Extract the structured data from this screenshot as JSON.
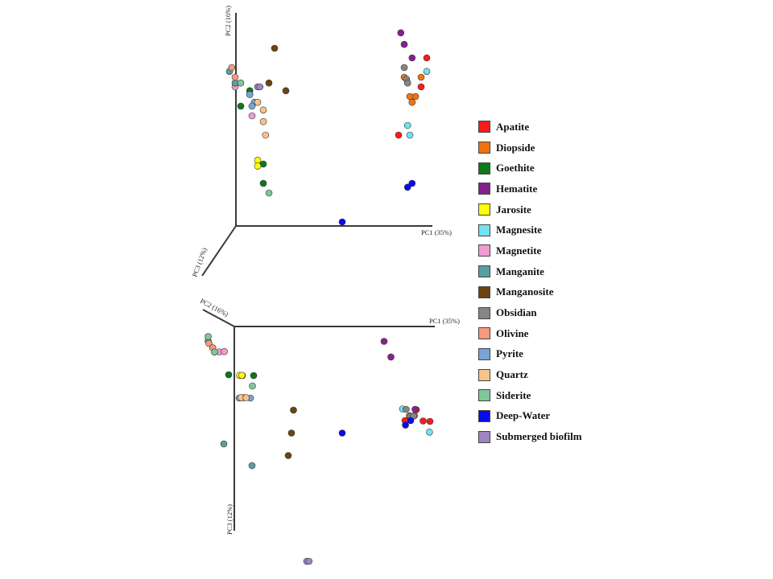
{
  "chart_data": [
    {
      "type": "scatter",
      "title": "",
      "axes": {
        "x": "PC1 (35%)",
        "y": "PC2 (16%)",
        "z": "PC3 (12%)"
      },
      "series": [
        {
          "name": "Apatite",
          "points": [
            [
              0.85,
              0.85,
              0.3
            ],
            [
              0.8,
              0.7,
              0.3
            ],
            [
              0.6,
              0.45,
              0.3
            ]
          ]
        },
        {
          "name": "Diopside",
          "points": [
            [
              0.8,
              0.75,
              0.3
            ],
            [
              0.75,
              0.65,
              0.3
            ],
            [
              0.65,
              0.75,
              0.3
            ],
            [
              0.7,
              0.65,
              0.3
            ],
            [
              0.72,
              0.62,
              0.3
            ]
          ]
        },
        {
          "name": "Goethite",
          "points": [
            [
              -0.72,
              0.68,
              0.3
            ],
            [
              -0.6,
              0.3,
              0.3
            ],
            [
              -0.6,
              0.2,
              0.3
            ],
            [
              -0.8,
              0.6,
              0.3
            ]
          ]
        },
        {
          "name": "Hematite",
          "points": [
            [
              0.62,
              0.98,
              0.3
            ],
            [
              0.65,
              0.92,
              0.3
            ],
            [
              0.72,
              0.85,
              0.3
            ]
          ]
        },
        {
          "name": "Jarosite",
          "points": [
            [
              -0.65,
              0.32,
              0.3
            ],
            [
              -0.65,
              0.29,
              0.3
            ]
          ]
        },
        {
          "name": "Magnesite",
          "points": [
            [
              0.85,
              0.78,
              0.3
            ],
            [
              0.68,
              0.5,
              0.3
            ],
            [
              0.7,
              0.45,
              0.3
            ]
          ]
        },
        {
          "name": "Magnetite",
          "points": [
            [
              -0.85,
              0.7,
              0.3
            ],
            [
              -0.7,
              0.55,
              0.3
            ]
          ]
        },
        {
          "name": "Manganite",
          "points": [
            [
              -0.9,
              0.78,
              0.3
            ],
            [
              -0.85,
              0.72,
              0.3
            ]
          ]
        },
        {
          "name": "Manganosite",
          "points": [
            [
              -0.5,
              0.9,
              0.3
            ],
            [
              -0.55,
              0.72,
              0.3
            ],
            [
              -0.4,
              0.68,
              0.3
            ]
          ]
        },
        {
          "name": "Obsidian",
          "points": [
            [
              0.65,
              0.8,
              0.3
            ],
            [
              0.67,
              0.74,
              0.3
            ],
            [
              0.68,
              0.72,
              0.3
            ]
          ]
        },
        {
          "name": "Olivine",
          "points": [
            [
              -0.88,
              0.8,
              0.3
            ],
            [
              -0.85,
              0.75,
              0.3
            ]
          ]
        },
        {
          "name": "Pyrite",
          "points": [
            [
              -0.72,
              0.66,
              0.3
            ],
            [
              -0.68,
              0.62,
              0.3
            ],
            [
              -0.7,
              0.6,
              0.3
            ]
          ]
        },
        {
          "name": "Quartz",
          "points": [
            [
              -0.65,
              0.62,
              0.3
            ],
            [
              -0.6,
              0.58,
              0.3
            ],
            [
              -0.6,
              0.52,
              0.3
            ],
            [
              -0.58,
              0.45,
              0.3
            ]
          ]
        },
        {
          "name": "Siderite",
          "points": [
            [
              -0.8,
              0.72,
              0.3
            ],
            [
              -0.55,
              0.15,
              0.3
            ]
          ]
        },
        {
          "name": "Deep-Water",
          "points": [
            [
              0.1,
              0.0,
              0.3
            ],
            [
              0.72,
              0.2,
              0.3
            ],
            [
              0.68,
              0.18,
              0.3
            ]
          ]
        },
        {
          "name": "Submerged biofilm",
          "points": [
            [
              -0.65,
              0.7,
              0.3
            ],
            [
              -0.63,
              0.7,
              0.3
            ]
          ]
        }
      ]
    },
    {
      "type": "scatter",
      "title": "",
      "axes": {
        "x": "PC1 (35%)",
        "y": "PC2 (16%)",
        "z": "PC3 (12%)"
      },
      "series": [
        {
          "name": "Apatite",
          "points": [
            [
              0.8,
              0.5,
              0.35
            ],
            [
              0.85,
              0.45,
              0.4
            ],
            [
              0.7,
              0.5,
              0.4
            ],
            [
              0.9,
              0.4,
              0.4
            ]
          ]
        },
        {
          "name": "Diopside",
          "points": [
            [
              0.75,
              0.55,
              0.38
            ],
            [
              0.8,
              0.58,
              0.38
            ]
          ]
        },
        {
          "name": "Goethite",
          "points": [
            [
              -0.7,
              0.7,
              0.2
            ],
            [
              -0.8,
              0.8,
              0.2
            ],
            [
              -0.6,
              0.7,
              0.2
            ]
          ]
        },
        {
          "name": "Hematite",
          "points": [
            [
              0.6,
              0.9,
              0.05
            ],
            [
              0.65,
              0.85,
              0.12
            ],
            [
              0.8,
              0.55,
              0.35
            ]
          ]
        },
        {
          "name": "Jarosite",
          "points": [
            [
              -0.72,
              0.72,
              0.2
            ],
            [
              -0.7,
              0.72,
              0.2
            ]
          ]
        },
        {
          "name": "Magnesite",
          "points": [
            [
              0.7,
              0.6,
              0.35
            ],
            [
              0.9,
              0.42,
              0.45
            ]
          ]
        },
        {
          "name": "Magnetite",
          "points": [
            [
              -0.85,
              0.95,
              0.1
            ],
            [
              -0.8,
              0.98,
              0.1
            ]
          ]
        },
        {
          "name": "Manganite",
          "points": [
            [
              -0.95,
              0.95,
              0.05
            ],
            [
              -0.95,
              0.3,
              0.5
            ],
            [
              -0.7,
              0.3,
              0.6
            ]
          ]
        },
        {
          "name": "Manganosite",
          "points": [
            [
              -0.3,
              0.45,
              0.35
            ],
            [
              -0.35,
              0.3,
              0.45
            ],
            [
              -0.4,
              0.2,
              0.55
            ]
          ]
        },
        {
          "name": "Obsidian",
          "points": [
            [
              0.72,
              0.55,
              0.35
            ],
            [
              0.75,
              0.5,
              0.38
            ],
            [
              0.78,
              0.52,
              0.38
            ]
          ]
        },
        {
          "name": "Olivine",
          "points": [
            [
              -0.95,
              0.92,
              0.06
            ],
            [
              -0.92,
              0.9,
              0.08
            ]
          ]
        },
        {
          "name": "Pyrite",
          "points": [
            [
              -0.75,
              0.6,
              0.3
            ],
            [
              -0.65,
              0.6,
              0.3
            ],
            [
              -0.7,
              0.65,
              0.3
            ]
          ]
        },
        {
          "name": "Quartz",
          "points": [
            [
              -0.72,
              0.66,
              0.3
            ],
            [
              -0.68,
              0.64,
              0.3
            ]
          ]
        },
        {
          "name": "Siderite",
          "points": [
            [
              -0.95,
              0.95,
              0.03
            ],
            [
              -0.9,
              0.92,
              0.1
            ],
            [
              -0.6,
              0.75,
              0.25
            ]
          ]
        },
        {
          "name": "Deep-Water",
          "points": [
            [
              0.1,
              0.3,
              0.45
            ],
            [
              0.75,
              0.5,
              0.4
            ],
            [
              0.7,
              0.48,
              0.42
            ]
          ]
        },
        {
          "name": "Submerged biofilm",
          "points": [
            [
              -0.45,
              -0.8,
              1.0
            ],
            [
              -0.43,
              -0.8,
              1.0
            ]
          ]
        }
      ]
    }
  ],
  "legend": [
    {
      "name": "Apatite",
      "color": "#ff1a1a"
    },
    {
      "name": "Diopside",
      "color": "#ef7411"
    },
    {
      "name": "Goethite",
      "color": "#0a7a1a"
    },
    {
      "name": "Hematite",
      "color": "#86208f"
    },
    {
      "name": "Jarosite",
      "color": "#ffff00"
    },
    {
      "name": "Magnesite",
      "color": "#72e2f0"
    },
    {
      "name": "Magnetite",
      "color": "#ef9ccf"
    },
    {
      "name": "Manganite",
      "color": "#5c9ea0"
    },
    {
      "name": "Manganosite",
      "color": "#6b4410"
    },
    {
      "name": "Obsidian",
      "color": "#858585"
    },
    {
      "name": "Olivine",
      "color": "#f7997f"
    },
    {
      "name": "Pyrite",
      "color": "#78a4d8"
    },
    {
      "name": "Quartz",
      "color": "#f8c28c"
    },
    {
      "name": "Siderite",
      "color": "#7fc69a"
    },
    {
      "name": "Deep-Water",
      "color": "#0a0af0"
    },
    {
      "name": "Submerged biofilm",
      "color": "#9d85c4"
    }
  ]
}
